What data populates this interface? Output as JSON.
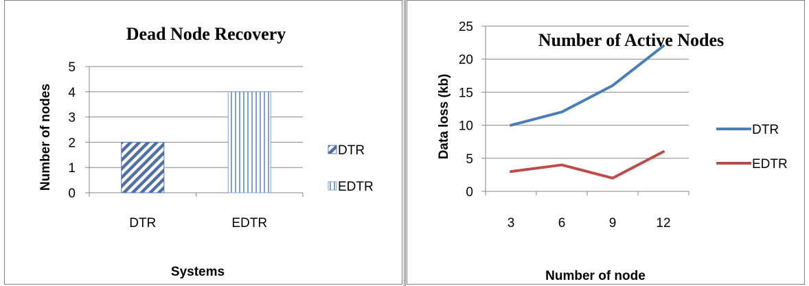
{
  "chart_data": [
    {
      "type": "bar",
      "title": "Dead Node Recovery",
      "xlabel": "Systems",
      "ylabel": "Number of nodes",
      "categories": [
        "DTR",
        "EDTR"
      ],
      "series": [
        {
          "name": "DTR",
          "values": [
            2,
            null
          ],
          "pattern": "diagonal-hatch",
          "color": "#4f6fa8"
        },
        {
          "name": "EDTR",
          "values": [
            null,
            4
          ],
          "pattern": "vertical-hatch",
          "color": "#7f9fcf"
        }
      ],
      "ylim": [
        0,
        5
      ],
      "yticks": [
        "0",
        "1",
        "2",
        "3",
        "4",
        "5"
      ],
      "grid": true,
      "legend": "right"
    },
    {
      "type": "line",
      "title": "Number of Active Nodes",
      "xlabel": "Number of node",
      "ylabel": "Data loss (kb)",
      "categories": [
        "3",
        "6",
        "9",
        "12"
      ],
      "series": [
        {
          "name": "DTR",
          "values": [
            10,
            12,
            16,
            22
          ],
          "color": "#4a7ebb"
        },
        {
          "name": "EDTR",
          "values": [
            3,
            4,
            2,
            6
          ],
          "color": "#be4b48"
        }
      ],
      "ylim": [
        0,
        25
      ],
      "yticks": [
        "0",
        "5",
        "10",
        "15",
        "20",
        "25"
      ],
      "grid": true,
      "legend": "right"
    }
  ]
}
